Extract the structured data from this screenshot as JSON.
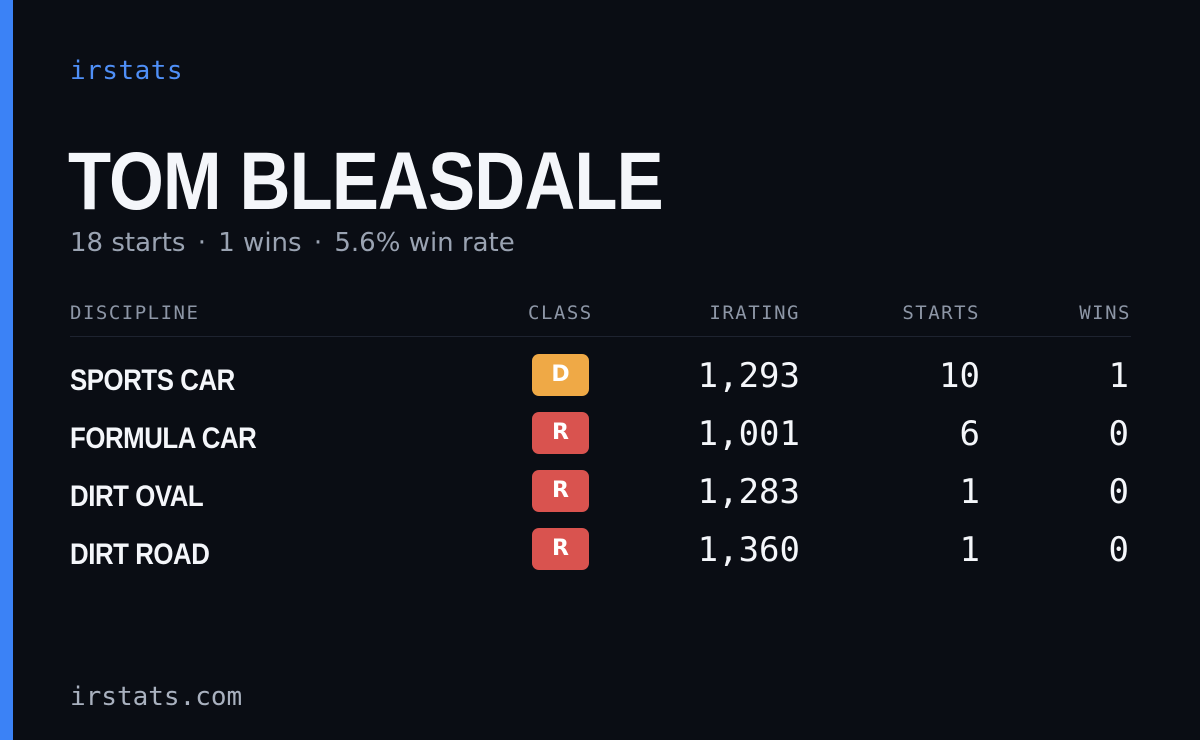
{
  "brand": "irstats",
  "player": {
    "name": "TOM BLEASDALE",
    "starts_text": "18 starts",
    "wins_text": "1 wins",
    "win_rate_text": "5.6% win rate",
    "separator": "·"
  },
  "table": {
    "headers": {
      "discipline": "DISCIPLINE",
      "class": "CLASS",
      "irating": "IRATING",
      "starts": "STARTS",
      "wins": "WINS"
    },
    "rows": [
      {
        "discipline": "SPORTS CAR",
        "class": "D",
        "class_color": "#efa946",
        "irating": "1,293",
        "starts": "10",
        "wins": "1"
      },
      {
        "discipline": "FORMULA CAR",
        "class": "R",
        "class_color": "#d9534f",
        "irating": "1,001",
        "starts": "6",
        "wins": "0"
      },
      {
        "discipline": "DIRT OVAL",
        "class": "R",
        "class_color": "#d9534f",
        "irating": "1,283",
        "starts": "1",
        "wins": "0"
      },
      {
        "discipline": "DIRT ROAD",
        "class": "R",
        "class_color": "#d9534f",
        "irating": "1,360",
        "starts": "1",
        "wins": "0"
      }
    ]
  },
  "footer": "irstats.com",
  "colors": {
    "accent": "#3b82f6",
    "background": "#0a0d14"
  }
}
